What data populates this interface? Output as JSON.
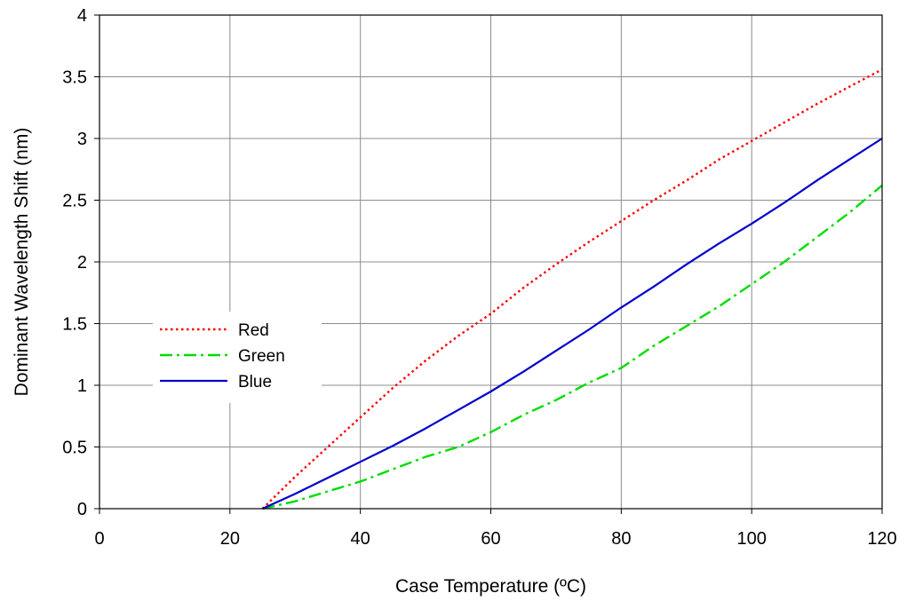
{
  "chart_data": {
    "type": "line",
    "title": "",
    "xlabel": "Case Temperature (ºC)",
    "ylabel": "Dominant Wavelength Shift (nm)",
    "xlim": [
      0,
      120
    ],
    "ylim": [
      0,
      4
    ],
    "xticks": [
      "0",
      "20",
      "40",
      "60",
      "80",
      "100",
      "120"
    ],
    "yticks": [
      "0",
      "0.5",
      "1",
      "1.5",
      "2",
      "2.5",
      "3",
      "3.5",
      "4"
    ],
    "grid": true,
    "legend_position": "center-left",
    "series": [
      {
        "name": "Red",
        "color": "#ff0000",
        "style": "dotted",
        "x": [
          25,
          30,
          35,
          40,
          45,
          50,
          55,
          60,
          65,
          70,
          75,
          80,
          85,
          90,
          95,
          100,
          105,
          110,
          115,
          120
        ],
        "y": [
          0.0,
          0.26,
          0.5,
          0.74,
          0.98,
          1.2,
          1.4,
          1.58,
          1.79,
          1.98,
          2.16,
          2.33,
          2.5,
          2.66,
          2.83,
          2.98,
          3.13,
          3.28,
          3.42,
          3.56
        ]
      },
      {
        "name": "Green",
        "color": "#00dd00",
        "style": "dash-dot",
        "x": [
          25,
          30,
          35,
          40,
          45,
          50,
          55,
          60,
          65,
          70,
          75,
          80,
          85,
          90,
          95,
          100,
          105,
          110,
          115,
          120
        ],
        "y": [
          0.0,
          0.06,
          0.14,
          0.22,
          0.32,
          0.42,
          0.5,
          0.62,
          0.76,
          0.88,
          1.02,
          1.14,
          1.32,
          1.48,
          1.64,
          1.82,
          2.0,
          2.2,
          2.4,
          2.62
        ]
      },
      {
        "name": "Blue",
        "color": "#0000cc",
        "style": "solid",
        "x": [
          25,
          30,
          35,
          40,
          45,
          50,
          55,
          60,
          65,
          70,
          75,
          80,
          85,
          90,
          95,
          100,
          105,
          110,
          115,
          120
        ],
        "y": [
          0.0,
          0.12,
          0.25,
          0.38,
          0.51,
          0.65,
          0.8,
          0.95,
          1.11,
          1.28,
          1.45,
          1.63,
          1.8,
          1.98,
          2.15,
          2.31,
          2.48,
          2.66,
          2.83,
          3.0
        ]
      }
    ]
  }
}
